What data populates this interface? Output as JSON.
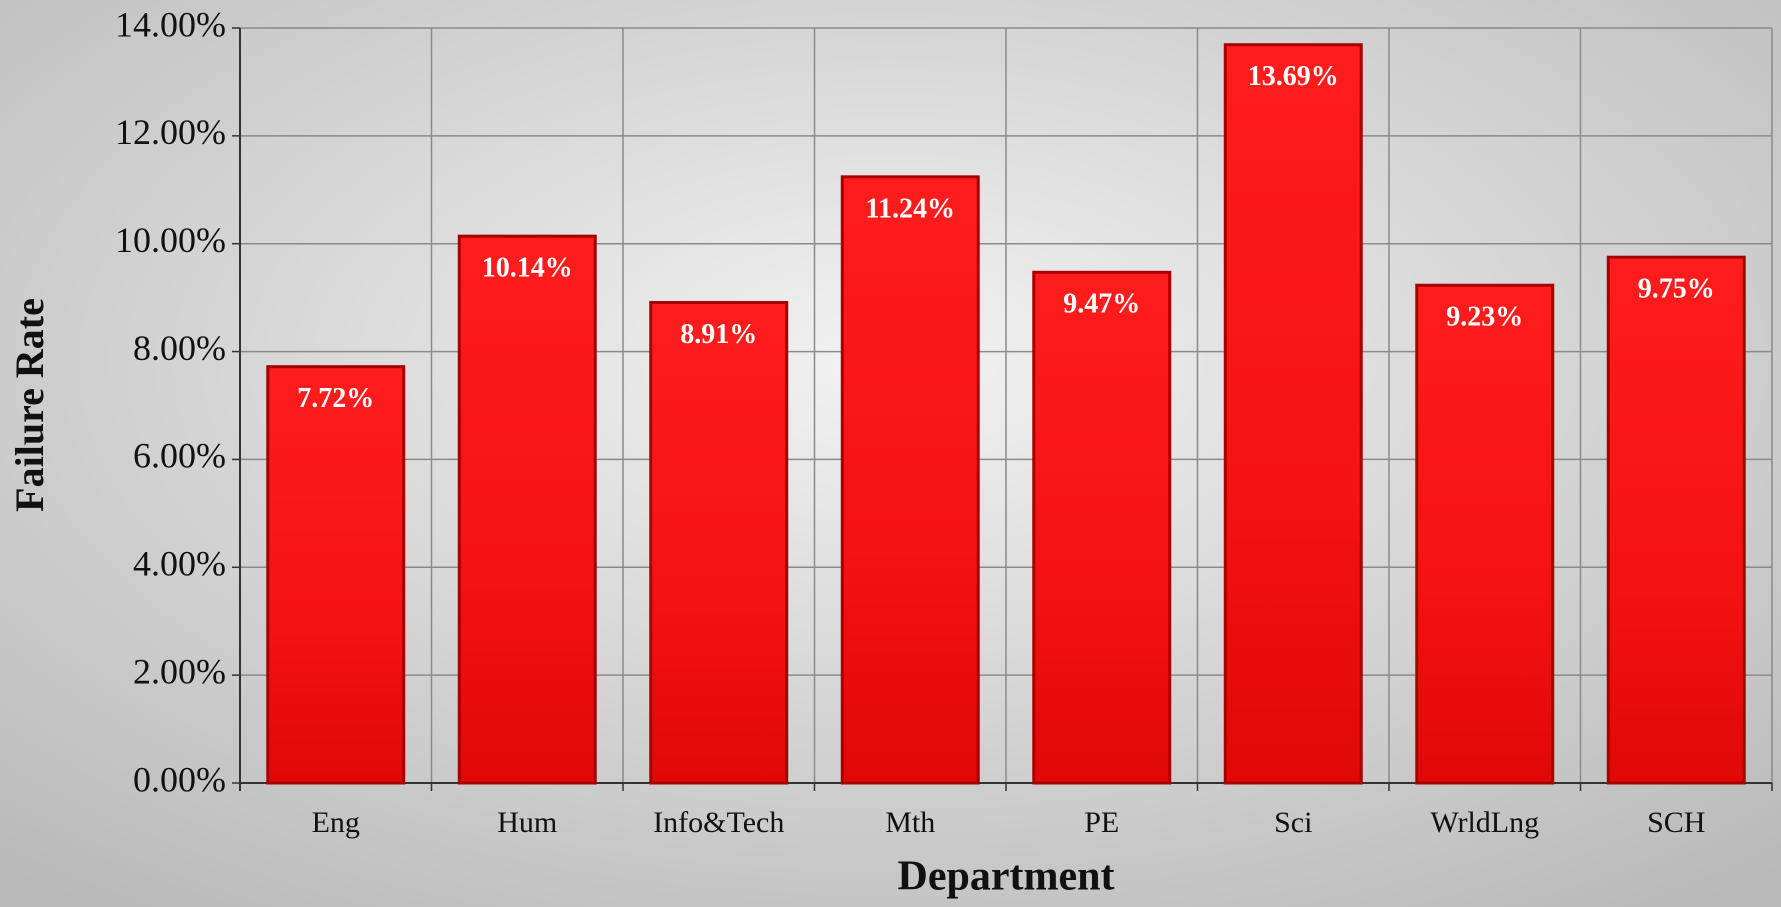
{
  "chart_data": {
    "type": "bar",
    "x_label": "Department",
    "y_label": "Failure Rate",
    "categories": [
      "Eng",
      "Hum",
      "Info&Tech",
      "Mth",
      "PE",
      "Sci",
      "WrldLng",
      "SCH"
    ],
    "values": [
      7.72,
      10.14,
      8.91,
      11.24,
      9.47,
      13.69,
      9.23,
      9.75
    ],
    "value_labels": [
      "7.72%",
      "10.14%",
      "8.91%",
      "11.24%",
      "9.47%",
      "13.69%",
      "9.23%",
      "9.75%"
    ],
    "color": "#f01010",
    "ylim": [
      0,
      14
    ],
    "yticks": [
      {
        "value": 0,
        "label": "0.00%"
      },
      {
        "value": 2,
        "label": "2.00%"
      },
      {
        "value": 4,
        "label": "4.00%"
      },
      {
        "value": 6,
        "label": "6.00%"
      },
      {
        "value": 8,
        "label": "8.00%"
      },
      {
        "value": 10,
        "label": "10.00%"
      },
      {
        "value": 12,
        "label": "12.00%"
      },
      {
        "value": 14,
        "label": "14.00%"
      }
    ],
    "grid": true
  }
}
